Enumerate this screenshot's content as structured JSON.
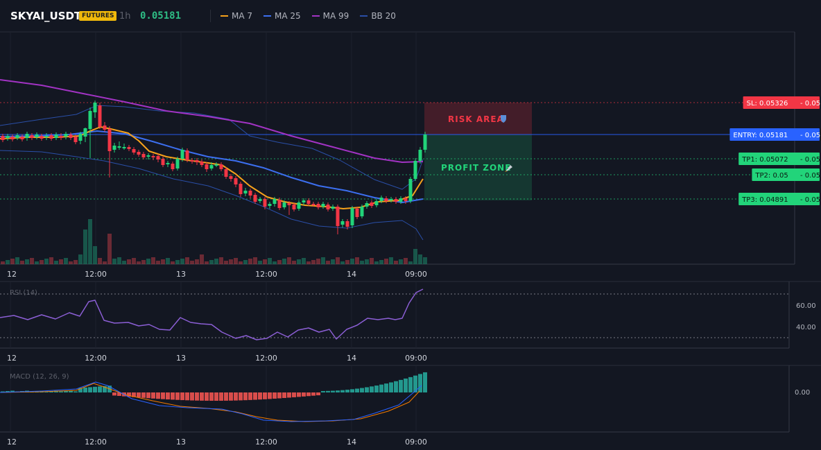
{
  "header": {
    "symbol": "SKYAI_USDT",
    "badge": "FUTURES",
    "timeframe": "1h",
    "last_price": "0.05181",
    "legend": [
      {
        "label": "MA 7",
        "color": "#f7a21b"
      },
      {
        "label": "MA 25",
        "color": "#3c6ff0"
      },
      {
        "label": "MA 99",
        "color": "#a233c4"
      },
      {
        "label": "BB 20",
        "color": "#2a4fa8"
      }
    ]
  },
  "chart_data": [
    {
      "type": "candlestick",
      "name": "price",
      "x_ticks": [
        "12",
        "12:00",
        "13",
        "12:00",
        "14",
        "09:00"
      ],
      "levels": [
        {
          "label": "SL: 0.05326",
          "value": "0.05",
          "color": "#f23645"
        },
        {
          "label": "ENTRY: 0.05181",
          "value": "0.05",
          "color": "#2962ff"
        },
        {
          "label": "TP1: 0.05072",
          "value": "0.05",
          "color": "#22d47a"
        },
        {
          "label": "TP2: 0.05",
          "value": "0.05",
          "color": "#22d47a"
        },
        {
          "label": "TP3: 0.04891",
          "value": "0.05",
          "color": "#22d47a"
        }
      ],
      "zones": {
        "risk_label": "RISK AREA",
        "profit_label": "PROFIT ZONE"
      },
      "colors": {
        "up": "#22d47a",
        "down": "#f23645"
      }
    },
    {
      "type": "line",
      "name": "RSI",
      "label": "RSI (14)",
      "y_ticks": [
        "60.00",
        "40.00"
      ],
      "x_ticks": [
        "12",
        "12:00",
        "13",
        "12:00",
        "14",
        "09:00"
      ],
      "color": "#8c5fd6"
    },
    {
      "type": "histogram",
      "name": "MACD",
      "label": "MACD (12, 26, 9)",
      "y_ticks": [
        "0.00"
      ],
      "x_ticks": [
        "12",
        "12:00",
        "13",
        "12:00",
        "14",
        "09:00"
      ],
      "colors": {
        "hist_pos": "#26a69a",
        "hist_neg": "#ef5350",
        "macd": "#2962ff",
        "signal": "#f57c00"
      }
    }
  ]
}
